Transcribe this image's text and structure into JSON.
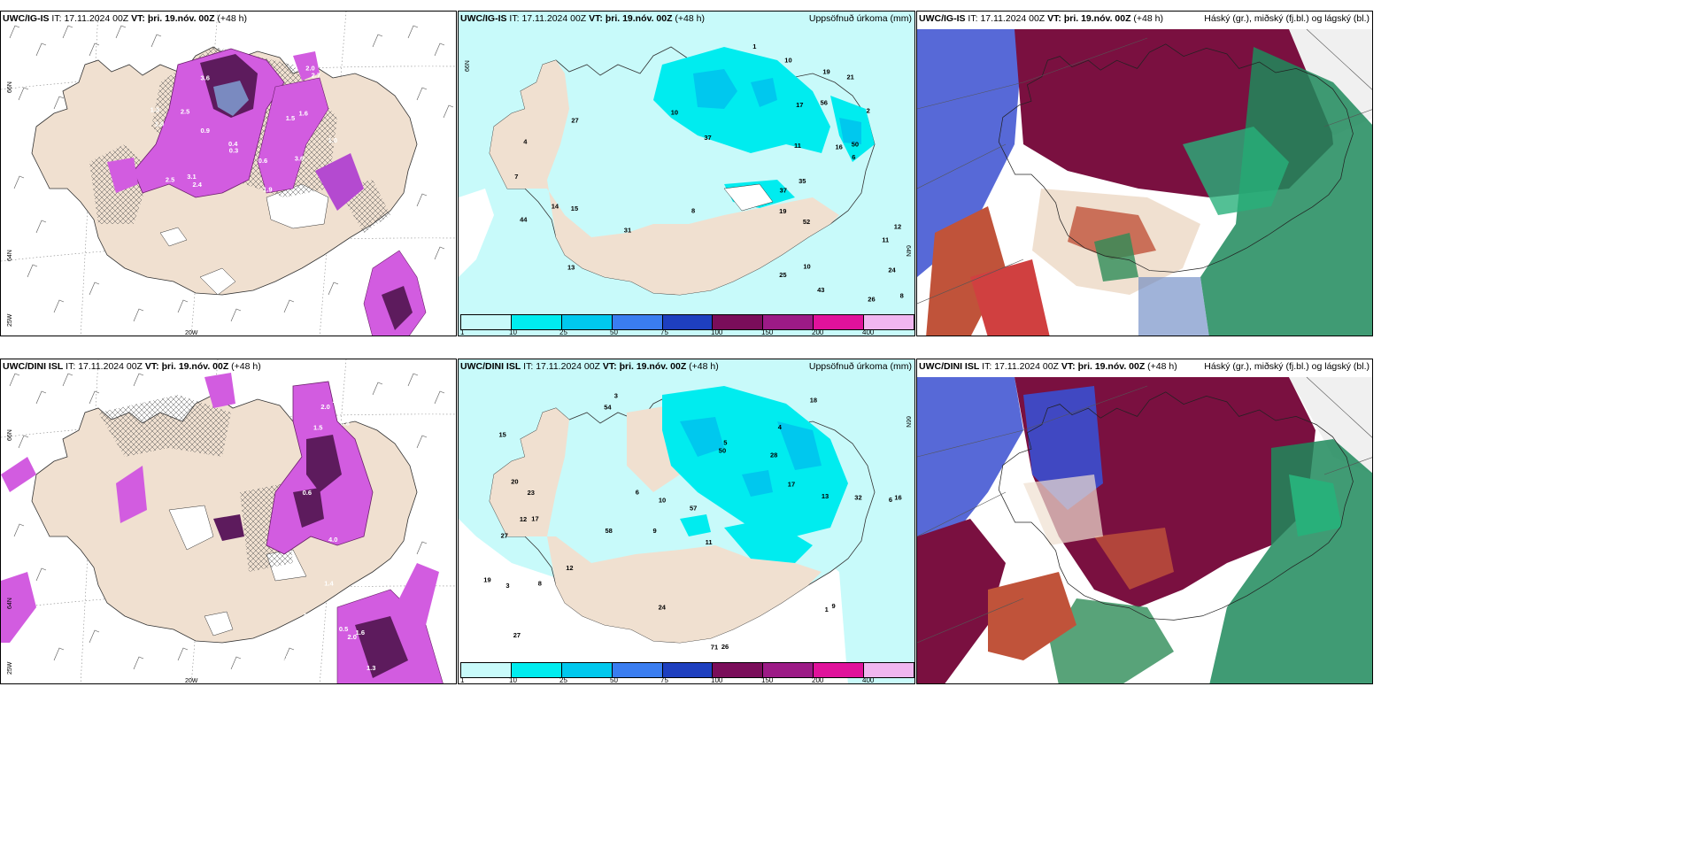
{
  "rows": [
    {
      "model": "UWC/IG-IS",
      "it_label": "IT:",
      "it_value": "17.11.2024 00Z",
      "vt_label": "VT:",
      "vt_value": "þri. 19.nóv. 00Z",
      "lead": "(+48 h)",
      "precip_title": "Uppsöfnuð úrkoma (mm)",
      "cloud_title": "Háský (gr.), miðský (fj.bl.) og lágský (bl.)",
      "lat_top": "66N",
      "lat_mid": "64N",
      "lon_left": "25W",
      "lon_mid": "20W",
      "snow_labels": [
        "0.3",
        "3.6",
        "3.1",
        "2.5",
        "1.6",
        "1.9",
        "1.0",
        "0.9",
        "0.3",
        "2.4",
        "2.5",
        "1.3",
        "0.4",
        "0.6",
        "1.5",
        "2.0",
        "1.0",
        "2.7",
        "3.6"
      ],
      "precip_numbers": [
        "19",
        "12",
        "16",
        "11",
        "25",
        "56",
        "50",
        "37",
        "24",
        "43",
        "35",
        "37",
        "44",
        "52",
        "31",
        "26",
        "21",
        "14",
        "19",
        "10",
        "8",
        "7",
        "11",
        "10",
        "6",
        "13",
        "27",
        "17",
        "8",
        "15",
        "2",
        "1",
        "4",
        "10"
      ]
    },
    {
      "model": "UWC/DINI ISL",
      "it_label": "IT:",
      "it_value": "17.11.2024 00Z",
      "vt_label": "VT:",
      "vt_value": "þri. 19.nóv. 00Z",
      "lead": "(+48 h)",
      "precip_title": "Uppsöfnuð úrkoma (mm)",
      "cloud_title": "Háský (gr.), miðský (fj.bl.) og lágský (bl.)",
      "lat_top": "66N",
      "lat_mid": "64N",
      "lon_left": "25W",
      "lon_mid": "20W",
      "snow_labels": [
        "1.2",
        "0.9",
        "4.0",
        "1.4",
        "1.5",
        "2.3",
        "1.6",
        "0.8",
        "2.0",
        "1.5",
        "1.3",
        "0.6",
        "1.8",
        "2.0",
        "0.5"
      ],
      "precip_numbers": [
        "3",
        "4",
        "6",
        "9",
        "11",
        "17",
        "15",
        "28",
        "27",
        "50",
        "57",
        "27",
        "54",
        "58",
        "71",
        "26",
        "24",
        "18",
        "17",
        "12",
        "23",
        "12",
        "16",
        "32",
        "19",
        "20",
        "10",
        "13",
        "9",
        "3",
        "1",
        "5",
        "8",
        "6"
      ]
    }
  ],
  "colorbar": {
    "ticks": [
      "1",
      "10",
      "25",
      "50",
      "75",
      "100",
      "150",
      "200",
      "400"
    ],
    "colors": [
      "#c8fafa",
      "#00ecef",
      "#00c8ee",
      "#3a7df0",
      "#1e3fbf",
      "#7a0d5a",
      "#9c1a86",
      "#e0129b",
      "#f0b6f0"
    ]
  },
  "palette": {
    "land": "#f0e0d0",
    "sea": "#ffffff",
    "precip_light": "#c8fafa",
    "precip_mid": "#00ecef",
    "snow_pink": "#d25ce0",
    "snow_dark": "#5d1b5d",
    "cloud_high": "#7a1040",
    "cloud_mid": "#c0533a",
    "cloud_low": "#3a4fd0",
    "cloud_green": "#1f8a5c"
  }
}
